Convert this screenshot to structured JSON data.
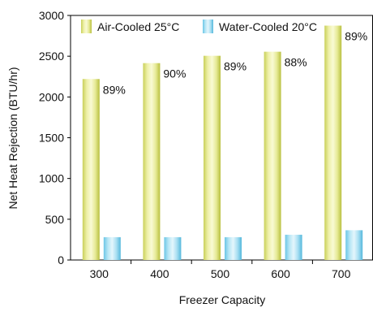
{
  "chart_data": {
    "type": "bar",
    "title": "",
    "xlabel": "Freezer Capacity",
    "ylabel": "Net Heat Rejection (BTU/hr)",
    "categories": [
      "300",
      "400",
      "500",
      "600",
      "700"
    ],
    "ylim": [
      0,
      3000
    ],
    "yticks": [
      0,
      500,
      1000,
      1500,
      2000,
      2500,
      3000
    ],
    "grid": false,
    "legend_position": "top",
    "series": [
      {
        "name": "Air-Cooled 25°C",
        "values": [
          2220,
          2415,
          2505,
          2555,
          2875
        ],
        "labels": [
          "89%",
          "90%",
          "89%",
          "88%",
          "89%"
        ],
        "color": "#d9e08a"
      },
      {
        "name": "Water-Cooled 20°C",
        "values": [
          280,
          280,
          280,
          310,
          365
        ],
        "labels": [],
        "color": "#9fd8ec"
      }
    ]
  }
}
